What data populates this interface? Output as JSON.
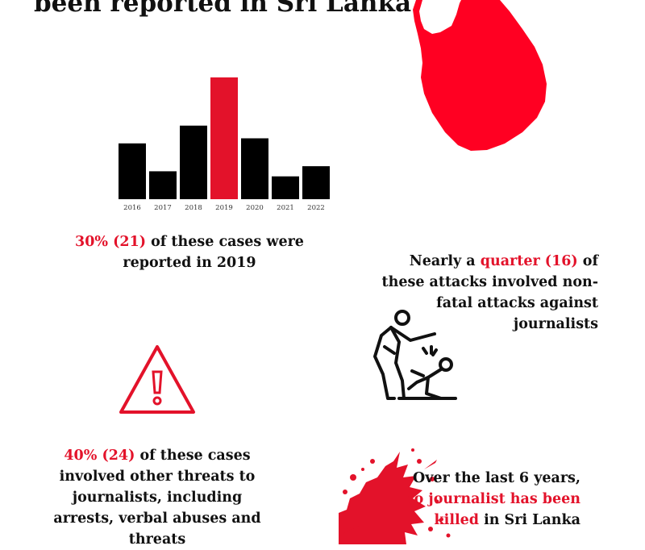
{
  "headline": "been reported in Sri Lanka",
  "colors": {
    "accent": "#e3122a",
    "bar": "#000000",
    "highlight": "#e3122a",
    "text": "#111111"
  },
  "chart_data": {
    "type": "bar",
    "title": "",
    "xlabel": "",
    "ylabel": "",
    "categories": [
      "2016",
      "2017",
      "2018",
      "2019",
      "2020",
      "2021",
      "2022"
    ],
    "values": [
      11,
      5.5,
      14.5,
      24,
      12,
      4.5,
      6.5
    ],
    "highlight_category": "2019",
    "ylim": [
      0,
      24
    ],
    "grid": false
  },
  "stats": {
    "stat1": {
      "highlight": "30% (21)",
      "text": " of these cases were reported in 2019"
    },
    "stat2": {
      "prefix": "Nearly a ",
      "highlight": "quarter (16)",
      "suffix": " of these attacks involved non-fatal attacks against journalists"
    },
    "stat3": {
      "highlight": "40% (24)",
      "text": " of these cases involved other threats to journalists, including arrests, verbal abuses and threats"
    },
    "stat4": {
      "line1": "Over the last 6 years, ",
      "highlight": "no journalist has been killed",
      "suffix": " in Sri Lanka"
    }
  },
  "icons": {
    "map": "sri-lanka-map-icon",
    "warning": "warning-triangle-icon",
    "attack": "assault-icon",
    "splatter": "blood-splatter-icon"
  }
}
